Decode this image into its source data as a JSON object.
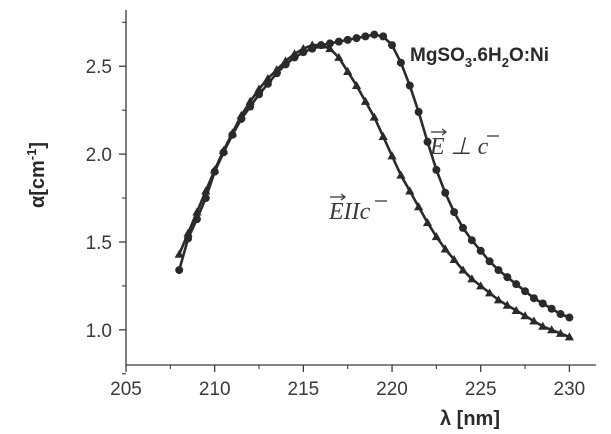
{
  "chart_data": {
    "type": "line",
    "title_parts": [
      "MgSO",
      "3",
      ".6H",
      "2",
      "O:Ni"
    ],
    "xlabel": "λ [nm]",
    "ylabel_parts": [
      "α",
      "[cm",
      "-1",
      "]"
    ],
    "xlim": [
      205,
      231.5
    ],
    "ylim": [
      0.8,
      2.82
    ],
    "xticks": [
      205,
      210,
      215,
      220,
      225,
      230
    ],
    "xtick_labels": [
      "205",
      "210",
      "215",
      "220",
      "225",
      "230"
    ],
    "yticks": [
      1.0,
      1.5,
      2.0,
      2.5
    ],
    "ytick_labels": [
      "1.0",
      "1.5",
      "2.0",
      "2.5"
    ],
    "grid": false,
    "legend": "none",
    "line_color": "#2a2a2a",
    "series": [
      {
        "marker": "circle",
        "annotation": "E ⊥ c",
        "x": [
          208,
          208.5,
          209,
          209.5,
          210,
          210.5,
          211,
          211.5,
          212,
          212.5,
          213,
          213.5,
          214,
          214.5,
          215,
          215.5,
          216,
          216.5,
          217,
          217.5,
          218,
          218.5,
          219,
          219.5,
          220,
          220.5,
          221,
          221.5,
          222,
          222.5,
          223,
          223.5,
          224,
          224.5,
          225,
          225.5,
          226,
          226.5,
          227,
          227.5,
          228,
          228.5,
          229,
          229.5,
          230
        ],
        "y": [
          1.34,
          1.52,
          1.63,
          1.75,
          1.9,
          2.01,
          2.11,
          2.2,
          2.27,
          2.34,
          2.4,
          2.46,
          2.51,
          2.55,
          2.58,
          2.6,
          2.62,
          2.63,
          2.64,
          2.65,
          2.66,
          2.67,
          2.68,
          2.67,
          2.62,
          2.52,
          2.39,
          2.24,
          2.07,
          1.91,
          1.78,
          1.67,
          1.58,
          1.51,
          1.45,
          1.39,
          1.34,
          1.3,
          1.26,
          1.22,
          1.18,
          1.15,
          1.12,
          1.09,
          1.07
        ]
      },
      {
        "marker": "triangle",
        "annotation": "E II c",
        "x": [
          208,
          208.5,
          209,
          209.5,
          210,
          210.5,
          211,
          211.5,
          212,
          212.5,
          213,
          213.5,
          214,
          214.5,
          215,
          215.5,
          216,
          216.5,
          217,
          217.5,
          218,
          218.5,
          219,
          219.5,
          220,
          220.5,
          221,
          221.5,
          222,
          222.5,
          223,
          223.5,
          224,
          224.5,
          225,
          225.5,
          226,
          226.5,
          227,
          227.5,
          228,
          228.5,
          229,
          229.5,
          230
        ],
        "y": [
          1.43,
          1.55,
          1.67,
          1.79,
          1.91,
          2.02,
          2.12,
          2.22,
          2.3,
          2.37,
          2.43,
          2.48,
          2.53,
          2.57,
          2.6,
          2.62,
          2.62,
          2.6,
          2.55,
          2.47,
          2.39,
          2.3,
          2.21,
          2.1,
          1.99,
          1.88,
          1.79,
          1.7,
          1.61,
          1.53,
          1.46,
          1.4,
          1.34,
          1.29,
          1.25,
          1.21,
          1.17,
          1.14,
          1.11,
          1.08,
          1.05,
          1.02,
          1.0,
          0.98,
          0.96
        ]
      }
    ]
  }
}
